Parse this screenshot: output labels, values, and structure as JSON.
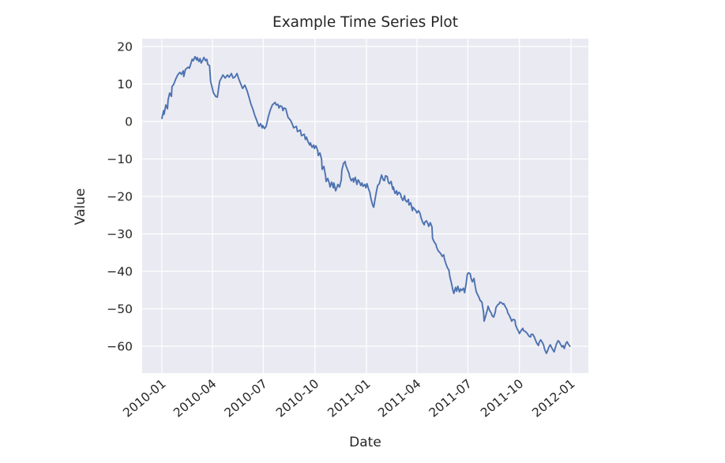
{
  "chart_data": {
    "type": "line",
    "title": "Example Time Series Plot",
    "xlabel": "Date",
    "ylabel": "Value",
    "grid": true,
    "legend": "none",
    "plot_bg": "#eaeaf2",
    "grid_color": "#ffffff",
    "line_color": "#4c72b0",
    "text_color": "#262626",
    "x_unit": "days since 2010-01-01",
    "x_tick_labels": [
      "2010-01",
      "2010-04",
      "2010-07",
      "2010-10",
      "2011-01",
      "2011-04",
      "2011-07",
      "2011-10",
      "2012-01"
    ],
    "x_tick_days": [
      0,
      90,
      181,
      273,
      365,
      455,
      546,
      638,
      730
    ],
    "y_tick_labels": [
      "20",
      "10",
      "0",
      "−10",
      "−20",
      "−30",
      "−40",
      "−50",
      "−60"
    ],
    "y_tick_values": [
      20,
      10,
      0,
      -10,
      -20,
      -30,
      -40,
      -50,
      -60
    ],
    "ylim": [
      -67,
      22
    ],
    "xlim_days": [
      -35,
      761
    ],
    "series": [
      {
        "name": "value",
        "points": [
          [
            0,
            0.8
          ],
          [
            3,
            2.9
          ],
          [
            4,
            1.9
          ],
          [
            7,
            4.4
          ],
          [
            10,
            3.4
          ],
          [
            11,
            5.7
          ],
          [
            14,
            7.6
          ],
          [
            17,
            6.7
          ],
          [
            18,
            9.3
          ],
          [
            21,
            9.9
          ],
          [
            25,
            11.4
          ],
          [
            28,
            12.4
          ],
          [
            32,
            13.1
          ],
          [
            35,
            12.6
          ],
          [
            38,
            13.5
          ],
          [
            39,
            12.0
          ],
          [
            42,
            13.9
          ],
          [
            47,
            14.5
          ],
          [
            49,
            14.2
          ],
          [
            52,
            15.6
          ],
          [
            54,
            16.6
          ],
          [
            56,
            16.2
          ],
          [
            59,
            17.3
          ],
          [
            62,
            16.4
          ],
          [
            63,
            17.1
          ],
          [
            66,
            16.0
          ],
          [
            68,
            16.8
          ],
          [
            70,
            15.6
          ],
          [
            73,
            16.4
          ],
          [
            75,
            17.1
          ],
          [
            78,
            16.2
          ],
          [
            80,
            16.6
          ],
          [
            82,
            15.2
          ],
          [
            85,
            14.9
          ],
          [
            87,
            10.7
          ],
          [
            92,
            7.6
          ],
          [
            96,
            6.7
          ],
          [
            99,
            6.5
          ],
          [
            103,
            10.7
          ],
          [
            109,
            12.4
          ],
          [
            113,
            11.6
          ],
          [
            117,
            12.4
          ],
          [
            120,
            11.8
          ],
          [
            124,
            12.8
          ],
          [
            127,
            11.6
          ],
          [
            130,
            11.8
          ],
          [
            134,
            12.8
          ],
          [
            137,
            11.4
          ],
          [
            141,
            9.9
          ],
          [
            144,
            8.8
          ],
          [
            148,
            9.7
          ],
          [
            152,
            8.2
          ],
          [
            155,
            6.7
          ],
          [
            159,
            4.6
          ],
          [
            162,
            3.4
          ],
          [
            166,
            1.5
          ],
          [
            169,
            0.4
          ],
          [
            173,
            -1.3
          ],
          [
            176,
            -0.6
          ],
          [
            179,
            -1.7
          ],
          [
            180,
            -1.1
          ],
          [
            183,
            -1.9
          ],
          [
            186,
            -1.3
          ],
          [
            190,
            1.3
          ],
          [
            193,
            2.9
          ],
          [
            197,
            4.4
          ],
          [
            202,
            5.1
          ],
          [
            204,
            4.4
          ],
          [
            207,
            4.6
          ],
          [
            209,
            3.6
          ],
          [
            211,
            4.2
          ],
          [
            214,
            4.0
          ],
          [
            216,
            2.9
          ],
          [
            218,
            3.6
          ],
          [
            221,
            3.4
          ],
          [
            223,
            2.3
          ],
          [
            225,
            1.1
          ],
          [
            228,
            0.6
          ],
          [
            230,
            0.2
          ],
          [
            233,
            -0.8
          ],
          [
            235,
            -1.7
          ],
          [
            240,
            -1.3
          ],
          [
            242,
            -2.7
          ],
          [
            247,
            -2.3
          ],
          [
            249,
            -3.8
          ],
          [
            254,
            -3.4
          ],
          [
            256,
            -4.8
          ],
          [
            258,
            -4.2
          ],
          [
            261,
            -5.5
          ],
          [
            264,
            -6.3
          ],
          [
            265,
            -5.7
          ],
          [
            268,
            -6.9
          ],
          [
            271,
            -6.3
          ],
          [
            272,
            -7.2
          ],
          [
            275,
            -6.5
          ],
          [
            278,
            -7.8
          ],
          [
            279,
            -9.1
          ],
          [
            282,
            -8.4
          ],
          [
            285,
            -10.1
          ],
          [
            286,
            -12.8
          ],
          [
            289,
            -12.0
          ],
          [
            292,
            -14.5
          ],
          [
            293,
            -16.0
          ],
          [
            296,
            -15.2
          ],
          [
            299,
            -16.6
          ],
          [
            300,
            -17.5
          ],
          [
            303,
            -16.2
          ],
          [
            306,
            -17.7
          ],
          [
            307,
            -16.4
          ],
          [
            310,
            -18.5
          ],
          [
            313,
            -17.3
          ],
          [
            314,
            -16.8
          ],
          [
            317,
            -17.5
          ],
          [
            320,
            -15.6
          ],
          [
            321,
            -13.1
          ],
          [
            324,
            -11.2
          ],
          [
            327,
            -10.7
          ],
          [
            328,
            -11.6
          ],
          [
            331,
            -12.8
          ],
          [
            334,
            -13.9
          ],
          [
            335,
            -14.7
          ],
          [
            338,
            -15.8
          ],
          [
            341,
            -15.2
          ],
          [
            342,
            -16.2
          ],
          [
            345,
            -14.9
          ],
          [
            348,
            -16.8
          ],
          [
            350,
            -15.6
          ],
          [
            352,
            -16.0
          ],
          [
            355,
            -17.1
          ],
          [
            357,
            -16.4
          ],
          [
            359,
            -17.3
          ],
          [
            362,
            -16.8
          ],
          [
            364,
            -17.7
          ],
          [
            366,
            -16.6
          ],
          [
            369,
            -18.1
          ],
          [
            371,
            -18.9
          ],
          [
            373,
            -20.6
          ],
          [
            376,
            -22.3
          ],
          [
            378,
            -22.9
          ],
          [
            380,
            -21.1
          ],
          [
            383,
            -18.5
          ],
          [
            385,
            -17.1
          ],
          [
            388,
            -16.6
          ],
          [
            390,
            -15.4
          ],
          [
            392,
            -14.3
          ],
          [
            395,
            -15.6
          ],
          [
            397,
            -15.8
          ],
          [
            399,
            -14.5
          ],
          [
            402,
            -14.7
          ],
          [
            404,
            -16.2
          ],
          [
            406,
            -16.6
          ],
          [
            409,
            -16.0
          ],
          [
            412,
            -18.1
          ],
          [
            413,
            -17.5
          ],
          [
            416,
            -19.2
          ],
          [
            419,
            -18.5
          ],
          [
            420,
            -19.6
          ],
          [
            423,
            -18.9
          ],
          [
            426,
            -19.4
          ],
          [
            427,
            -20.2
          ],
          [
            430,
            -21.1
          ],
          [
            433,
            -19.8
          ],
          [
            434,
            -20.9
          ],
          [
            437,
            -21.5
          ],
          [
            440,
            -20.8
          ],
          [
            441,
            -22.3
          ],
          [
            444,
            -21.7
          ],
          [
            447,
            -23.8
          ],
          [
            448,
            -22.9
          ],
          [
            451,
            -23.4
          ],
          [
            454,
            -24.0
          ],
          [
            455,
            -24.4
          ],
          [
            458,
            -23.8
          ],
          [
            461,
            -24.7
          ],
          [
            462,
            -25.5
          ],
          [
            465,
            -26.8
          ],
          [
            468,
            -27.6
          ],
          [
            469,
            -26.9
          ],
          [
            472,
            -26.5
          ],
          [
            475,
            -27.4
          ],
          [
            476,
            -28.0
          ],
          [
            479,
            -27.0
          ],
          [
            482,
            -28.2
          ],
          [
            483,
            -31.2
          ],
          [
            486,
            -32.2
          ],
          [
            489,
            -32.8
          ],
          [
            490,
            -33.5
          ],
          [
            493,
            -34.5
          ],
          [
            496,
            -35.0
          ],
          [
            498,
            -35.4
          ],
          [
            500,
            -36.0
          ],
          [
            503,
            -35.6
          ],
          [
            504,
            -36.6
          ],
          [
            507,
            -38.1
          ],
          [
            510,
            -39.2
          ],
          [
            512,
            -39.6
          ],
          [
            514,
            -41.5
          ],
          [
            517,
            -43.4
          ],
          [
            519,
            -44.9
          ],
          [
            521,
            -45.9
          ],
          [
            524,
            -44.3
          ],
          [
            526,
            -45.3
          ],
          [
            528,
            -44.0
          ],
          [
            531,
            -45.5
          ],
          [
            533,
            -44.7
          ],
          [
            535,
            -45.1
          ],
          [
            538,
            -44.5
          ],
          [
            540,
            -45.7
          ],
          [
            543,
            -43.2
          ],
          [
            545,
            -40.8
          ],
          [
            547,
            -40.4
          ],
          [
            550,
            -40.6
          ],
          [
            552,
            -42.0
          ],
          [
            554,
            -42.8
          ],
          [
            557,
            -41.9
          ],
          [
            559,
            -44.0
          ],
          [
            561,
            -45.5
          ],
          [
            564,
            -46.4
          ],
          [
            566,
            -47.0
          ],
          [
            568,
            -47.8
          ],
          [
            571,
            -48.2
          ],
          [
            574,
            -51.0
          ],
          [
            575,
            -53.3
          ],
          [
            578,
            -51.8
          ],
          [
            581,
            -50.1
          ],
          [
            582,
            -49.3
          ],
          [
            585,
            -50.5
          ],
          [
            588,
            -51.2
          ],
          [
            589,
            -51.8
          ],
          [
            592,
            -52.2
          ],
          [
            595,
            -50.8
          ],
          [
            596,
            -49.7
          ],
          [
            599,
            -49.0
          ],
          [
            602,
            -48.6
          ],
          [
            603,
            -48.2
          ],
          [
            606,
            -48.4
          ],
          [
            609,
            -48.8
          ],
          [
            610,
            -48.6
          ],
          [
            613,
            -49.5
          ],
          [
            616,
            -50.3
          ],
          [
            617,
            -51.0
          ],
          [
            620,
            -51.8
          ],
          [
            623,
            -52.8
          ],
          [
            624,
            -53.3
          ],
          [
            627,
            -52.8
          ],
          [
            630,
            -53.0
          ],
          [
            631,
            -54.3
          ],
          [
            634,
            -55.4
          ],
          [
            637,
            -56.2
          ],
          [
            638,
            -56.6
          ],
          [
            641,
            -55.8
          ],
          [
            644,
            -55.2
          ],
          [
            645,
            -55.8
          ],
          [
            648,
            -56.0
          ],
          [
            651,
            -56.4
          ],
          [
            652,
            -56.6
          ],
          [
            655,
            -57.3
          ],
          [
            658,
            -57.5
          ],
          [
            659,
            -56.8
          ],
          [
            662,
            -56.8
          ],
          [
            665,
            -57.7
          ],
          [
            666,
            -58.1
          ],
          [
            669,
            -59.2
          ],
          [
            672,
            -59.8
          ],
          [
            673,
            -59.0
          ],
          [
            676,
            -58.3
          ],
          [
            679,
            -59.0
          ],
          [
            681,
            -59.6
          ],
          [
            683,
            -60.8
          ],
          [
            686,
            -61.9
          ],
          [
            688,
            -61.3
          ],
          [
            690,
            -60.4
          ],
          [
            693,
            -59.6
          ],
          [
            695,
            -60.2
          ],
          [
            697,
            -60.8
          ],
          [
            700,
            -61.5
          ],
          [
            702,
            -60.4
          ],
          [
            704,
            -59.4
          ],
          [
            707,
            -58.5
          ],
          [
            709,
            -58.8
          ],
          [
            711,
            -59.4
          ],
          [
            714,
            -60.2
          ],
          [
            716,
            -59.8
          ],
          [
            718,
            -60.6
          ],
          [
            721,
            -59.2
          ],
          [
            723,
            -58.8
          ],
          [
            725,
            -59.4
          ],
          [
            728,
            -60.0
          ]
        ]
      }
    ]
  }
}
